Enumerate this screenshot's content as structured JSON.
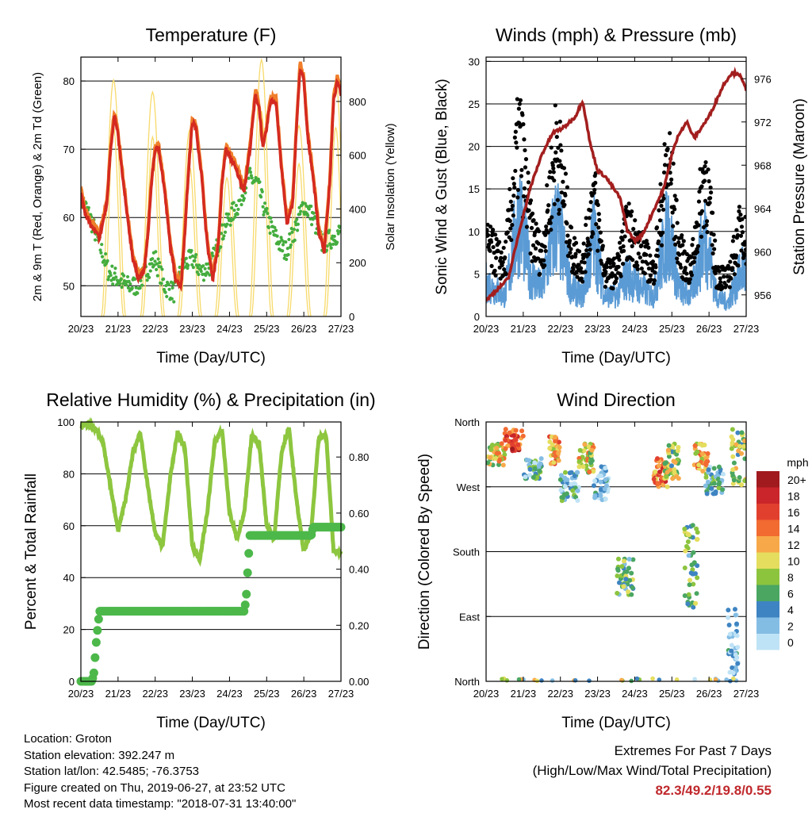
{
  "chart_data": [
    {
      "type": "line",
      "title": "Temperature (F)",
      "xlabel": "Time (Day/UTC)",
      "ylabel": "2m & 9m T (Red, Orange) & 2m Td (Green)",
      "y2label": "Solar Insolation (Yellow)",
      "x_ticks": [
        "20/23",
        "21/23",
        "22/23",
        "23/23",
        "24/23",
        "25/23",
        "26/23",
        "27/23"
      ],
      "xlim": [
        0,
        7
      ],
      "ylim": [
        45.5,
        83.5
      ],
      "y_ticks": [
        50,
        60,
        70,
        80
      ],
      "y2lim": [
        0,
        965
      ],
      "y2_ticks": [
        0,
        200,
        400,
        600,
        800
      ],
      "grid": true,
      "colors": {
        "t2m": "#d42a20",
        "t9m": "#f07e2a",
        "td2m": "#44ad3e",
        "solar": "#f7da6b"
      },
      "series": [
        {
          "name": "2m T",
          "color": "#d42a20",
          "x": [
            0,
            0.1,
            0.25,
            0.5,
            0.7,
            0.8,
            0.9,
            1.0,
            1.1,
            1.25,
            1.4,
            1.55,
            1.7,
            1.8,
            1.9,
            2.0,
            2.1,
            2.25,
            2.4,
            2.55,
            2.7,
            2.8,
            2.9,
            3.0,
            3.1,
            3.25,
            3.4,
            3.55,
            3.7,
            3.8,
            3.9,
            4.0,
            4.1,
            4.25,
            4.4,
            4.55,
            4.7,
            4.8,
            4.9,
            5.0,
            5.1,
            5.25,
            5.4,
            5.55,
            5.7,
            5.8,
            5.9,
            6.0,
            6.1,
            6.25,
            6.4,
            6.55,
            6.7,
            6.8,
            6.9,
            7.0
          ],
          "values": [
            63.5,
            61,
            59,
            57,
            62,
            70,
            75,
            72,
            67,
            60,
            54,
            51,
            52,
            57,
            65,
            70,
            70,
            64,
            56,
            51,
            50,
            58,
            67,
            74,
            73,
            66,
            56,
            51,
            56,
            65,
            70,
            69,
            68,
            66,
            64,
            70,
            78,
            76,
            70,
            73,
            77,
            77,
            67,
            59,
            62,
            73,
            82,
            80,
            72,
            66,
            58,
            55,
            65,
            77,
            80,
            78
          ]
        },
        {
          "name": "2m Td",
          "color": "#44ad3e",
          "x": [
            0,
            0.25,
            0.5,
            0.75,
            1.0,
            1.25,
            1.5,
            1.75,
            2.0,
            2.25,
            2.5,
            2.75,
            3.0,
            3.25,
            3.5,
            3.75,
            4.0,
            4.25,
            4.5,
            4.75,
            5.0,
            5.25,
            5.5,
            5.75,
            6.0,
            6.25,
            6.5,
            6.75,
            7.0
          ],
          "values": [
            63,
            60,
            56,
            52,
            51,
            50,
            50,
            52,
            54,
            50,
            49,
            53,
            54,
            52,
            53,
            57,
            60,
            62,
            66,
            65,
            60,
            57,
            55,
            58,
            62,
            60,
            56,
            57,
            58
          ]
        },
        {
          "name": "Solar",
          "color": "#f7da6b",
          "y_axis": "right",
          "peaks_x": [
            0.88,
            1.93,
            2.93,
            3.93,
            4.86,
            5.87,
            6.86
          ],
          "peaks_values": [
            880,
            835,
            695,
            645,
            955,
            710,
            880
          ]
        }
      ]
    },
    {
      "type": "scatter",
      "title": "Winds (mph) & Pressure (mb)",
      "xlabel": "Time (Day/UTC)",
      "ylabel": "Sonic Wind & Gust (Blue, Black)",
      "y2label": "Station Pressure (Maroon)",
      "x_ticks": [
        "20/23",
        "21/23",
        "22/23",
        "23/23",
        "24/23",
        "25/23",
        "26/23",
        "27/23"
      ],
      "xlim": [
        0,
        7
      ],
      "ylim": [
        0,
        30.5
      ],
      "y_ticks": [
        0,
        5,
        10,
        15,
        20,
        25,
        30
      ],
      "y2lim": [
        954,
        978
      ],
      "y2_ticks": [
        956,
        960,
        964,
        968,
        972,
        976
      ],
      "grid": true,
      "colors": {
        "wind": "#5b9bd5",
        "gust": "#000000",
        "pressure": "#a31e1e"
      },
      "series": [
        {
          "name": "Pressure",
          "color": "#a31e1e",
          "y_axis": "right",
          "x": [
            0,
            0.3,
            0.6,
            0.9,
            1.2,
            1.5,
            1.8,
            2.1,
            2.4,
            2.6,
            2.8,
            3.0,
            3.2,
            3.4,
            3.6,
            3.8,
            4.0,
            4.2,
            4.4,
            4.6,
            4.8,
            5.0,
            5.2,
            5.4,
            5.6,
            5.8,
            6.0,
            6.2,
            6.4,
            6.6,
            6.8,
            7.0
          ],
          "values": [
            955.5,
            956.5,
            957.5,
            962,
            966,
            969,
            971,
            971.5,
            972.5,
            974,
            970,
            967.5,
            967,
            966,
            965,
            962,
            961,
            961.5,
            963,
            964.5,
            966,
            969,
            971,
            972,
            970.5,
            971.5,
            972.5,
            974,
            975.5,
            976.5,
            976.5,
            975
          ]
        },
        {
          "name": "Wind",
          "color": "#5b9bd5",
          "x": [
            0,
            0.5,
            0.9,
            1.2,
            1.5,
            1.9,
            2.3,
            2.6,
            2.9,
            3.2,
            3.5,
            3.8,
            4.2,
            4.5,
            4.9,
            5.2,
            5.5,
            5.9,
            6.2,
            6.5,
            6.9,
            7.0
          ],
          "values": [
            5,
            3,
            15,
            6,
            4,
            14,
            4,
            3,
            12,
            3,
            3,
            6,
            4,
            3,
            13,
            4,
            3,
            12,
            3,
            2,
            7,
            6
          ]
        },
        {
          "name": "Gust",
          "color": "#000000",
          "x": [
            0,
            0.5,
            0.9,
            1.2,
            1.5,
            1.9,
            2.3,
            2.6,
            2.9,
            3.2,
            3.5,
            3.8,
            4.2,
            4.5,
            4.9,
            5.2,
            5.5,
            5.9,
            6.2,
            6.5,
            6.9,
            7.0
          ],
          "values": [
            10,
            7,
            25,
            12,
            8,
            24,
            9,
            7,
            17,
            6,
            6,
            12,
            9,
            6,
            22,
            9,
            6,
            20,
            6,
            5,
            13,
            10
          ]
        }
      ]
    },
    {
      "type": "line",
      "title": "Relative Humidity (%) & Precipitation (in)",
      "xlabel": "Time (Day/UTC)",
      "ylabel": "Percent & Total Rainfall",
      "x_ticks": [
        "20/23",
        "21/23",
        "22/23",
        "23/23",
        "24/23",
        "25/23",
        "26/23",
        "27/23"
      ],
      "xlim": [
        0,
        7
      ],
      "ylim": [
        0,
        100
      ],
      "y_ticks": [
        0,
        20,
        40,
        60,
        80,
        100
      ],
      "y2lim": [
        0,
        0.925
      ],
      "y2_ticks": [
        "0.00",
        "0.20",
        "0.40",
        "0.60",
        "0.80"
      ],
      "grid": true,
      "colors": {
        "rh": "#8dc63f",
        "rain": "#4cb84a"
      },
      "series": [
        {
          "name": "RH",
          "color": "#8dc63f",
          "x": [
            0,
            0.2,
            0.4,
            0.6,
            0.8,
            1.0,
            1.2,
            1.4,
            1.6,
            1.8,
            2.0,
            2.2,
            2.4,
            2.6,
            2.8,
            3.0,
            3.2,
            3.4,
            3.6,
            3.8,
            4.0,
            4.2,
            4.4,
            4.6,
            4.8,
            5.0,
            5.2,
            5.4,
            5.6,
            5.8,
            6.0,
            6.2,
            6.4,
            6.6,
            6.8,
            7.0
          ],
          "values": [
            98,
            99,
            97,
            92,
            75,
            58,
            70,
            88,
            96,
            75,
            57,
            52,
            78,
            96,
            90,
            52,
            47,
            65,
            92,
            97,
            65,
            55,
            65,
            95,
            92,
            60,
            55,
            88,
            98,
            70,
            50,
            58,
            94,
            95,
            50,
            50
          ]
        },
        {
          "name": "Rain",
          "color": "#4cb84a",
          "y_axis": "right",
          "x": [
            0,
            0.3,
            0.35,
            0.42,
            0.5,
            0.55,
            4.4,
            4.45,
            4.5,
            4.55,
            6.2,
            6.25,
            7.0
          ],
          "values": [
            0,
            0,
            0.03,
            0.15,
            0.25,
            0.25,
            0.25,
            0.3,
            0.42,
            0.52,
            0.52,
            0.55,
            0.55
          ]
        }
      ]
    },
    {
      "type": "scatter",
      "title": "Wind Direction",
      "xlabel": "Time (Day/UTC)",
      "ylabel": "Direction (Colored By Speed)",
      "x_ticks": [
        "20/23",
        "21/23",
        "22/23",
        "23/23",
        "24/23",
        "25/23",
        "26/23",
        "27/23"
      ],
      "xlim": [
        0,
        7
      ],
      "ylim": [
        0,
        360
      ],
      "y_ticks": [
        {
          "v": 0,
          "label": "North"
        },
        {
          "v": 90,
          "label": "East"
        },
        {
          "v": 180,
          "label": "South"
        },
        {
          "v": 270,
          "label": "West"
        },
        {
          "v": 360,
          "label": "North"
        }
      ],
      "grid": true,
      "legend": {
        "title": "mph",
        "placement": "right",
        "labels": [
          "20+",
          "18",
          "16",
          "14",
          "12",
          "10",
          "8",
          "6",
          "4",
          "2",
          "0"
        ],
        "colors": [
          "#a01a1e",
          "#c9252a",
          "#e2402f",
          "#f26b31",
          "#f7a949",
          "#e5dd5e",
          "#8cc43e",
          "#4aa661",
          "#3e84c2",
          "#84bde4",
          "#bfe3f6"
        ]
      },
      "clusters": [
        {
          "x": [
            0.0,
            0.5
          ],
          "y": [
            300,
            330
          ],
          "speed": 10
        },
        {
          "x": [
            0.5,
            1.0
          ],
          "y": [
            320,
            350
          ],
          "speed": 16
        },
        {
          "x": [
            1.0,
            1.5
          ],
          "y": [
            280,
            310
          ],
          "speed": 4
        },
        {
          "x": [
            1.7,
            2.0
          ],
          "y": [
            300,
            340
          ],
          "speed": 12
        },
        {
          "x": [
            2.0,
            2.5
          ],
          "y": [
            250,
            290
          ],
          "speed": 4
        },
        {
          "x": [
            2.5,
            2.9
          ],
          "y": [
            290,
            330
          ],
          "speed": 10
        },
        {
          "x": [
            2.9,
            3.3
          ],
          "y": [
            250,
            300
          ],
          "speed": 2
        },
        {
          "x": [
            3.5,
            4.0
          ],
          "y": [
            120,
            170
          ],
          "speed": 6
        },
        {
          "x": [
            4.5,
            4.9
          ],
          "y": [
            270,
            310
          ],
          "speed": 14
        },
        {
          "x": [
            4.8,
            5.2
          ],
          "y": [
            280,
            330
          ],
          "speed": 8
        },
        {
          "x": [
            5.3,
            5.7
          ],
          "y": [
            100,
            220
          ],
          "speed": 6
        },
        {
          "x": [
            5.6,
            6.0
          ],
          "y": [
            290,
            330
          ],
          "speed": 12
        },
        {
          "x": [
            5.9,
            6.4
          ],
          "y": [
            260,
            300
          ],
          "speed": 4
        },
        {
          "x": [
            6.6,
            7.0
          ],
          "y": [
            270,
            350
          ],
          "speed": 8
        },
        {
          "x": [
            6.5,
            6.8
          ],
          "y": [
            10,
            100
          ],
          "speed": 2
        }
      ]
    }
  ],
  "info": {
    "location": "Location: Groton",
    "elevation": "Station elevation: 392.247 m",
    "latlon": "Station lat/lon: 42.5485; -76.3753",
    "created": "Figure created on Thu, 2019-06-27, at 23:52 UTC",
    "recent": "Most recent data timestamp: \"2018-07-31 13:40:00\""
  },
  "extremes": {
    "line1": "Extremes For Past 7 Days",
    "line2": "(High/Low/Max Wind/Total Precipitation)",
    "values": "82.3/49.2/19.8/0.55"
  }
}
